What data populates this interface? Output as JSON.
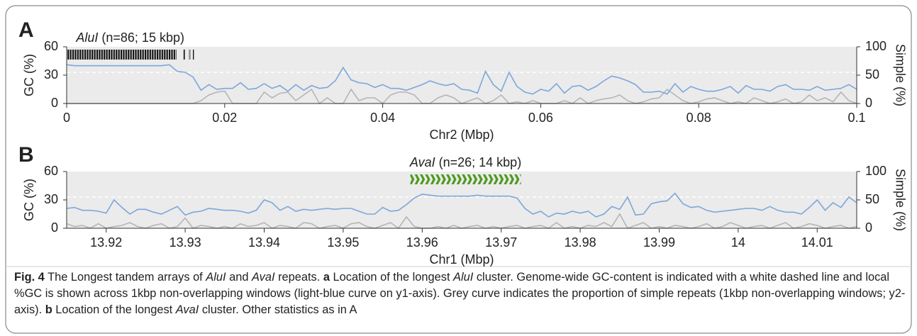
{
  "chart_data": [
    {
      "type": "line",
      "panel": "A",
      "annotation": [
        "AluI",
        " (n=86; 15 kbp)"
      ],
      "xlabel": "Chr2 (Mbp)",
      "ylabel": "GC (%)",
      "y2label": "Simple (%)",
      "xlim": [
        0,
        0.1
      ],
      "xticks": [
        0,
        0.02,
        0.04,
        0.06,
        0.08,
        0.1
      ],
      "ylim": [
        0,
        60
      ],
      "yticks": [
        0,
        30,
        60
      ],
      "y2lim": [
        0,
        100
      ],
      "y2ticks": [
        0,
        50,
        100
      ],
      "reference_line": 33,
      "repeat_color": "#111111",
      "repeat_marker": "stripe",
      "repeats": [
        [
          0,
          0.0139
        ],
        [
          0.0148,
          0.015
        ],
        [
          0.0155,
          0.0157
        ],
        [
          0.0159,
          0.0161
        ]
      ],
      "x": [
        0,
        0.001,
        0.002,
        0.003,
        0.004,
        0.005,
        0.006,
        0.007,
        0.008,
        0.009,
        0.01,
        0.011,
        0.012,
        0.013,
        0.014,
        0.015,
        0.016,
        0.017,
        0.018,
        0.019,
        0.02,
        0.021,
        0.022,
        0.023,
        0.024,
        0.025,
        0.026,
        0.027,
        0.028,
        0.029,
        0.03,
        0.031,
        0.032,
        0.033,
        0.034,
        0.035,
        0.036,
        0.037,
        0.038,
        0.039,
        0.04,
        0.041,
        0.042,
        0.043,
        0.044,
        0.045,
        0.046,
        0.047,
        0.048,
        0.049,
        0.05,
        0.051,
        0.052,
        0.053,
        0.054,
        0.055,
        0.056,
        0.057,
        0.058,
        0.059,
        0.06,
        0.061,
        0.062,
        0.063,
        0.064,
        0.065,
        0.066,
        0.067,
        0.068,
        0.069,
        0.07,
        0.071,
        0.072,
        0.073,
        0.074,
        0.075,
        0.076,
        0.077,
        0.078,
        0.079,
        0.08,
        0.081,
        0.082,
        0.083,
        0.084,
        0.085,
        0.086,
        0.087,
        0.088,
        0.089,
        0.09,
        0.091,
        0.092,
        0.093,
        0.094,
        0.095,
        0.096,
        0.097,
        0.098,
        0.099,
        0.1
      ],
      "series": [
        {
          "name": "GC",
          "color": "#7ba7dc",
          "values": [
            41,
            40,
            40,
            40,
            40,
            40,
            40,
            40,
            40,
            40,
            40,
            40,
            40,
            41,
            34,
            33,
            28,
            14,
            20,
            15,
            16,
            16,
            22,
            15,
            16,
            21,
            16,
            19,
            13,
            20,
            14,
            19,
            16,
            17,
            24,
            38,
            25,
            22,
            21,
            17,
            20,
            16,
            16,
            14,
            17,
            20,
            24,
            21,
            19,
            21,
            15,
            14,
            11,
            34,
            20,
            13,
            33,
            18,
            12,
            10,
            15,
            13,
            21,
            11,
            18,
            19,
            14,
            18,
            24,
            29,
            27,
            24,
            20,
            12,
            12,
            13,
            10,
            21,
            12,
            18,
            15,
            13,
            13,
            15,
            18,
            11,
            19,
            15,
            15,
            13,
            18,
            20,
            15,
            15,
            14,
            18,
            14,
            15,
            16,
            20,
            15
          ]
        },
        {
          "name": "Simple",
          "color": "#b5b5b5",
          "axis": "y2",
          "values": [
            0,
            0,
            0,
            0,
            0,
            0,
            0,
            0,
            0,
            0,
            0,
            0,
            0,
            0,
            0,
            0,
            0,
            5,
            15,
            20,
            22,
            0,
            0,
            0,
            0,
            20,
            10,
            18,
            20,
            5,
            15,
            25,
            0,
            10,
            0,
            0,
            25,
            5,
            10,
            10,
            0,
            15,
            20,
            20,
            15,
            0,
            0,
            10,
            15,
            10,
            0,
            5,
            10,
            0,
            5,
            15,
            0,
            3,
            0,
            5,
            0,
            0,
            0,
            5,
            0,
            10,
            0,
            5,
            8,
            10,
            15,
            5,
            0,
            3,
            8,
            10,
            25,
            15,
            5,
            0,
            3,
            8,
            10,
            5,
            0,
            3,
            0,
            10,
            5,
            0,
            3,
            8,
            0,
            3,
            15,
            5,
            10,
            3,
            20,
            5,
            0
          ]
        }
      ]
    },
    {
      "type": "line",
      "panel": "B",
      "annotation": [
        "AvaI",
        " (n=26; 14 kbp)"
      ],
      "xlabel": "Chr1 (Mbp)",
      "ylabel": "GC (%)",
      "y2label": "Simple (%)",
      "xlim": [
        13.915,
        14.015
      ],
      "xticks": [
        13.92,
        13.93,
        13.94,
        13.95,
        13.96,
        13.97,
        13.98,
        13.99,
        14,
        14.01
      ],
      "ylim": [
        0,
        60
      ],
      "yticks": [
        0,
        30,
        60
      ],
      "y2lim": [
        0,
        100
      ],
      "y2ticks": [
        0,
        50,
        100
      ],
      "reference_line": 33,
      "repeat_color": "#4c9a1c",
      "repeat_marker": "chevron",
      "repeats": [
        [
          13.9585,
          13.9725
        ]
      ],
      "x": [
        13.915,
        13.916,
        13.917,
        13.918,
        13.919,
        13.92,
        13.921,
        13.922,
        13.923,
        13.924,
        13.925,
        13.926,
        13.927,
        13.928,
        13.929,
        13.93,
        13.931,
        13.932,
        13.933,
        13.934,
        13.935,
        13.936,
        13.937,
        13.938,
        13.939,
        13.94,
        13.941,
        13.942,
        13.943,
        13.944,
        13.945,
        13.946,
        13.947,
        13.948,
        13.949,
        13.95,
        13.951,
        13.952,
        13.953,
        13.954,
        13.955,
        13.956,
        13.957,
        13.958,
        13.959,
        13.96,
        13.961,
        13.962,
        13.963,
        13.964,
        13.965,
        13.966,
        13.967,
        13.968,
        13.969,
        13.97,
        13.971,
        13.972,
        13.973,
        13.974,
        13.975,
        13.976,
        13.977,
        13.978,
        13.979,
        13.98,
        13.981,
        13.982,
        13.983,
        13.984,
        13.985,
        13.986,
        13.987,
        13.988,
        13.989,
        13.99,
        13.991,
        13.992,
        13.993,
        13.994,
        13.995,
        13.996,
        13.997,
        13.998,
        13.999,
        14,
        14.001,
        14.002,
        14.003,
        14.004,
        14.005,
        14.006,
        14.007,
        14.008,
        14.009,
        14.01,
        14.011,
        14.012,
        14.013,
        14.014,
        14.015
      ],
      "series": [
        {
          "name": "GC",
          "color": "#7ba7dc",
          "values": [
            21,
            22,
            19,
            19,
            18,
            16,
            30,
            22,
            15,
            20,
            20,
            17,
            15,
            19,
            23,
            14,
            17,
            18,
            21,
            20,
            19,
            19,
            18,
            16,
            19,
            30,
            27,
            19,
            23,
            18,
            20,
            19,
            20,
            21,
            20,
            21,
            21,
            18,
            15,
            15,
            22,
            18,
            19,
            25,
            32,
            36,
            35,
            34,
            34,
            34,
            34,
            34,
            35,
            34,
            34,
            34,
            34,
            32,
            21,
            15,
            18,
            12,
            16,
            15,
            18,
            16,
            18,
            12,
            15,
            23,
            20,
            33,
            14,
            15,
            26,
            28,
            29,
            37,
            26,
            22,
            23,
            19,
            17,
            18,
            19,
            20,
            21,
            21,
            19,
            23,
            19,
            17,
            17,
            15,
            22,
            30,
            19,
            27,
            22,
            33,
            27
          ]
        },
        {
          "name": "Simple",
          "color": "#b5b5b5",
          "axis": "y2",
          "values": [
            8,
            3,
            5,
            0,
            8,
            0,
            3,
            5,
            10,
            3,
            0,
            5,
            8,
            0,
            3,
            18,
            0,
            5,
            3,
            0,
            3,
            0,
            8,
            3,
            5,
            10,
            0,
            5,
            3,
            0,
            10,
            8,
            0,
            3,
            5,
            0,
            8,
            10,
            3,
            0,
            5,
            10,
            0,
            20,
            3,
            0,
            0,
            3,
            0,
            5,
            0,
            3,
            5,
            0,
            3,
            0,
            3,
            5,
            0,
            3,
            5,
            0,
            10,
            0,
            3,
            0,
            5,
            3,
            10,
            3,
            25,
            0,
            5,
            10,
            0,
            3,
            0,
            5,
            3,
            0,
            3,
            8,
            0,
            3,
            10,
            5,
            0,
            3,
            5,
            0,
            5,
            10,
            0,
            3,
            8,
            5,
            0,
            3,
            5,
            0,
            3
          ]
        }
      ]
    }
  ],
  "caption": [
    "Fig. 4",
    " The Longest tandem arrays of ",
    "AluI",
    " and ",
    "AvaI",
    " repeats. ",
    "a",
    " Location of the longest ",
    "AluI",
    " cluster. Genome-wide GC-content is indicated with a white dashed line and local %GC is shown across 1kbp non-overlapping windows (light-blue curve on y1-axis). Grey curve indicates the proportion of simple repeats (1kbp non-overlapping windows; y2-axis). ",
    "b",
    " Location of the longest ",
    "AvaI",
    " cluster. Other statistics as in A"
  ]
}
